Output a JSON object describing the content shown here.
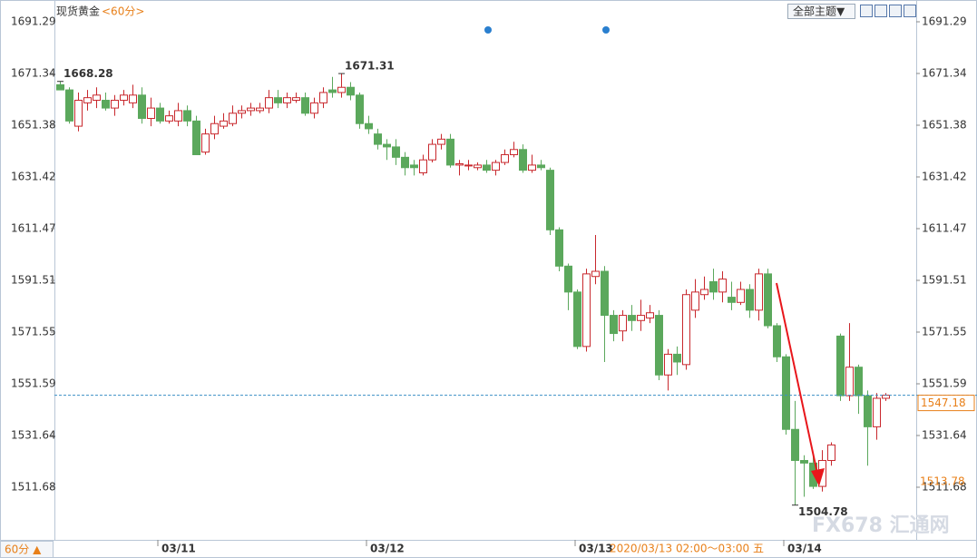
{
  "chart_data": {
    "type": "candlestick",
    "title": "现货黄金",
    "period_label": "<60分>",
    "toolbar_button": "全部主题▼",
    "period_selector": "60分 ▲",
    "crosshair_label": "2020/03/13 02:00～03:00 五",
    "watermark": "FX678 汇通网",
    "marker_price": 1513.78,
    "up_color": "#c8282d",
    "down_color": "#5ba85c",
    "current_line_color": "#3a8fc4",
    "ylim": [
      1491.37,
      1691.29
    ],
    "yticks": [
      1691.29,
      1671.34,
      1651.38,
      1631.42,
      1611.47,
      1591.51,
      1571.55,
      1551.59,
      1531.64,
      1511.68
    ],
    "categories": [
      null,
      null,
      null,
      null,
      null,
      null,
      null,
      null,
      null,
      null,
      null,
      "03/11",
      null,
      null,
      null,
      null,
      null,
      null,
      null,
      null,
      null,
      null,
      null,
      null,
      null,
      null,
      null,
      null,
      null,
      null,
      null,
      null,
      null,
      null,
      "03/12",
      null,
      null,
      null,
      null,
      null,
      null,
      null,
      null,
      null,
      null,
      null,
      null,
      null,
      null,
      null,
      null,
      null,
      null,
      null,
      null,
      null,
      null,
      "03/13",
      null,
      null,
      null,
      null,
      null,
      null,
      null,
      null,
      null,
      null,
      null,
      null,
      null,
      null,
      null,
      null,
      null,
      null,
      null,
      null,
      null,
      null,
      "03/14",
      null,
      null,
      null,
      null,
      null,
      null,
      null,
      null,
      null,
      null,
      null
    ],
    "open": [
      1667,
      1665,
      1651,
      1660,
      1661,
      1661,
      1658,
      1661,
      1660,
      1663,
      1654,
      1658,
      1653,
      1653,
      1657,
      1653,
      1641,
      1648,
      1651,
      1652,
      1656,
      1657,
      1657,
      1658,
      1662,
      1660,
      1661,
      1662,
      1656,
      1660,
      1665,
      1664,
      1666,
      1663,
      1652,
      1648,
      1644,
      1643,
      1639,
      1636,
      1633,
      1638,
      1644,
      1646,
      1636,
      1636,
      1635,
      1636,
      1634,
      1637,
      1640,
      1642,
      1634,
      1636,
      1634,
      1611,
      1597,
      1587,
      1566,
      1593,
      1595,
      1578,
      1572,
      1578,
      1576,
      1577,
      1578,
      1555,
      1563,
      1559,
      1580,
      1586,
      1591,
      1587,
      1585,
      1583,
      1588,
      1580,
      1594,
      1574,
      1562,
      1534,
      1522,
      1521,
      1512,
      1522,
      1570,
      1547,
      1558,
      1547,
      1535,
      1546
    ],
    "high": [
      1668.28,
      1666,
      1664,
      1665,
      1666,
      1664,
      1663,
      1665,
      1667,
      1666,
      1662,
      1660,
      1657,
      1660,
      1659,
      1655,
      1650,
      1655,
      1656,
      1659,
      1659,
      1660,
      1660,
      1665,
      1665,
      1664,
      1664,
      1664,
      1662,
      1666,
      1670,
      1671.31,
      1668,
      1664,
      1655,
      1650,
      1646,
      1646,
      1641,
      1638,
      1640,
      1646,
      1648,
      1648,
      1638,
      1638,
      1637,
      1638,
      1638,
      1642,
      1645,
      1644,
      1640,
      1638,
      1635,
      1612,
      1598,
      1588,
      1596,
      1609,
      1597,
      1580,
      1580,
      1582,
      1584,
      1582,
      1580,
      1565,
      1566,
      1588,
      1592,
      1593,
      1596,
      1595,
      1591,
      1591,
      1590,
      1596,
      1596,
      1575,
      1563,
      1545,
      1524,
      1524,
      1526,
      1529,
      1571,
      1575,
      1559,
      1549,
      1548,
      1548
    ],
    "low": [
      1665,
      1652,
      1649,
      1657,
      1658,
      1657,
      1655,
      1659,
      1658,
      1652,
      1651,
      1652,
      1652,
      1651,
      1651,
      1640,
      1640,
      1646,
      1650,
      1651,
      1654,
      1655,
      1656,
      1656,
      1658,
      1658,
      1660,
      1655,
      1654,
      1658,
      1662,
      1662,
      1661,
      1650,
      1648,
      1642,
      1638,
      1636,
      1632,
      1632,
      1632,
      1637,
      1642,
      1635,
      1632,
      1634,
      1634,
      1633,
      1632,
      1636,
      1639,
      1633,
      1633,
      1634,
      1609,
      1595,
      1580,
      1565,
      1564,
      1590,
      1560,
      1568,
      1568,
      1572,
      1572,
      1575,
      1553,
      1549,
      1555,
      1557,
      1577,
      1584,
      1584,
      1583,
      1580,
      1582,
      1577,
      1576,
      1573,
      1560,
      1532,
      1504.78,
      1508,
      1511,
      1510,
      1520,
      1545,
      1545,
      1540,
      1520,
      1530,
      1545
    ],
    "close": [
      1665,
      1653,
      1661,
      1662,
      1663,
      1658,
      1661,
      1663,
      1663,
      1654,
      1658,
      1653,
      1655,
      1657,
      1653,
      1640,
      1648,
      1652,
      1653,
      1656,
      1657,
      1658,
      1658,
      1662,
      1660,
      1662,
      1662,
      1656,
      1660,
      1664,
      1664,
      1666,
      1663,
      1652,
      1650,
      1644,
      1643,
      1639,
      1635,
      1635,
      1638,
      1644,
      1646,
      1636,
      1636.5,
      1636,
      1636,
      1634,
      1637,
      1640,
      1642,
      1634,
      1636,
      1635,
      1611,
      1597,
      1587,
      1566,
      1594,
      1595,
      1578,
      1571,
      1578,
      1576,
      1578,
      1579,
      1555,
      1563,
      1560,
      1586,
      1587,
      1588,
      1587,
      1592,
      1583,
      1588,
      1580,
      1594,
      1574,
      1562,
      1534,
      1522,
      1521,
      1512,
      1522,
      1528,
      1547,
      1558,
      1547,
      1535,
      1546,
      1547.18
    ]
  }
}
